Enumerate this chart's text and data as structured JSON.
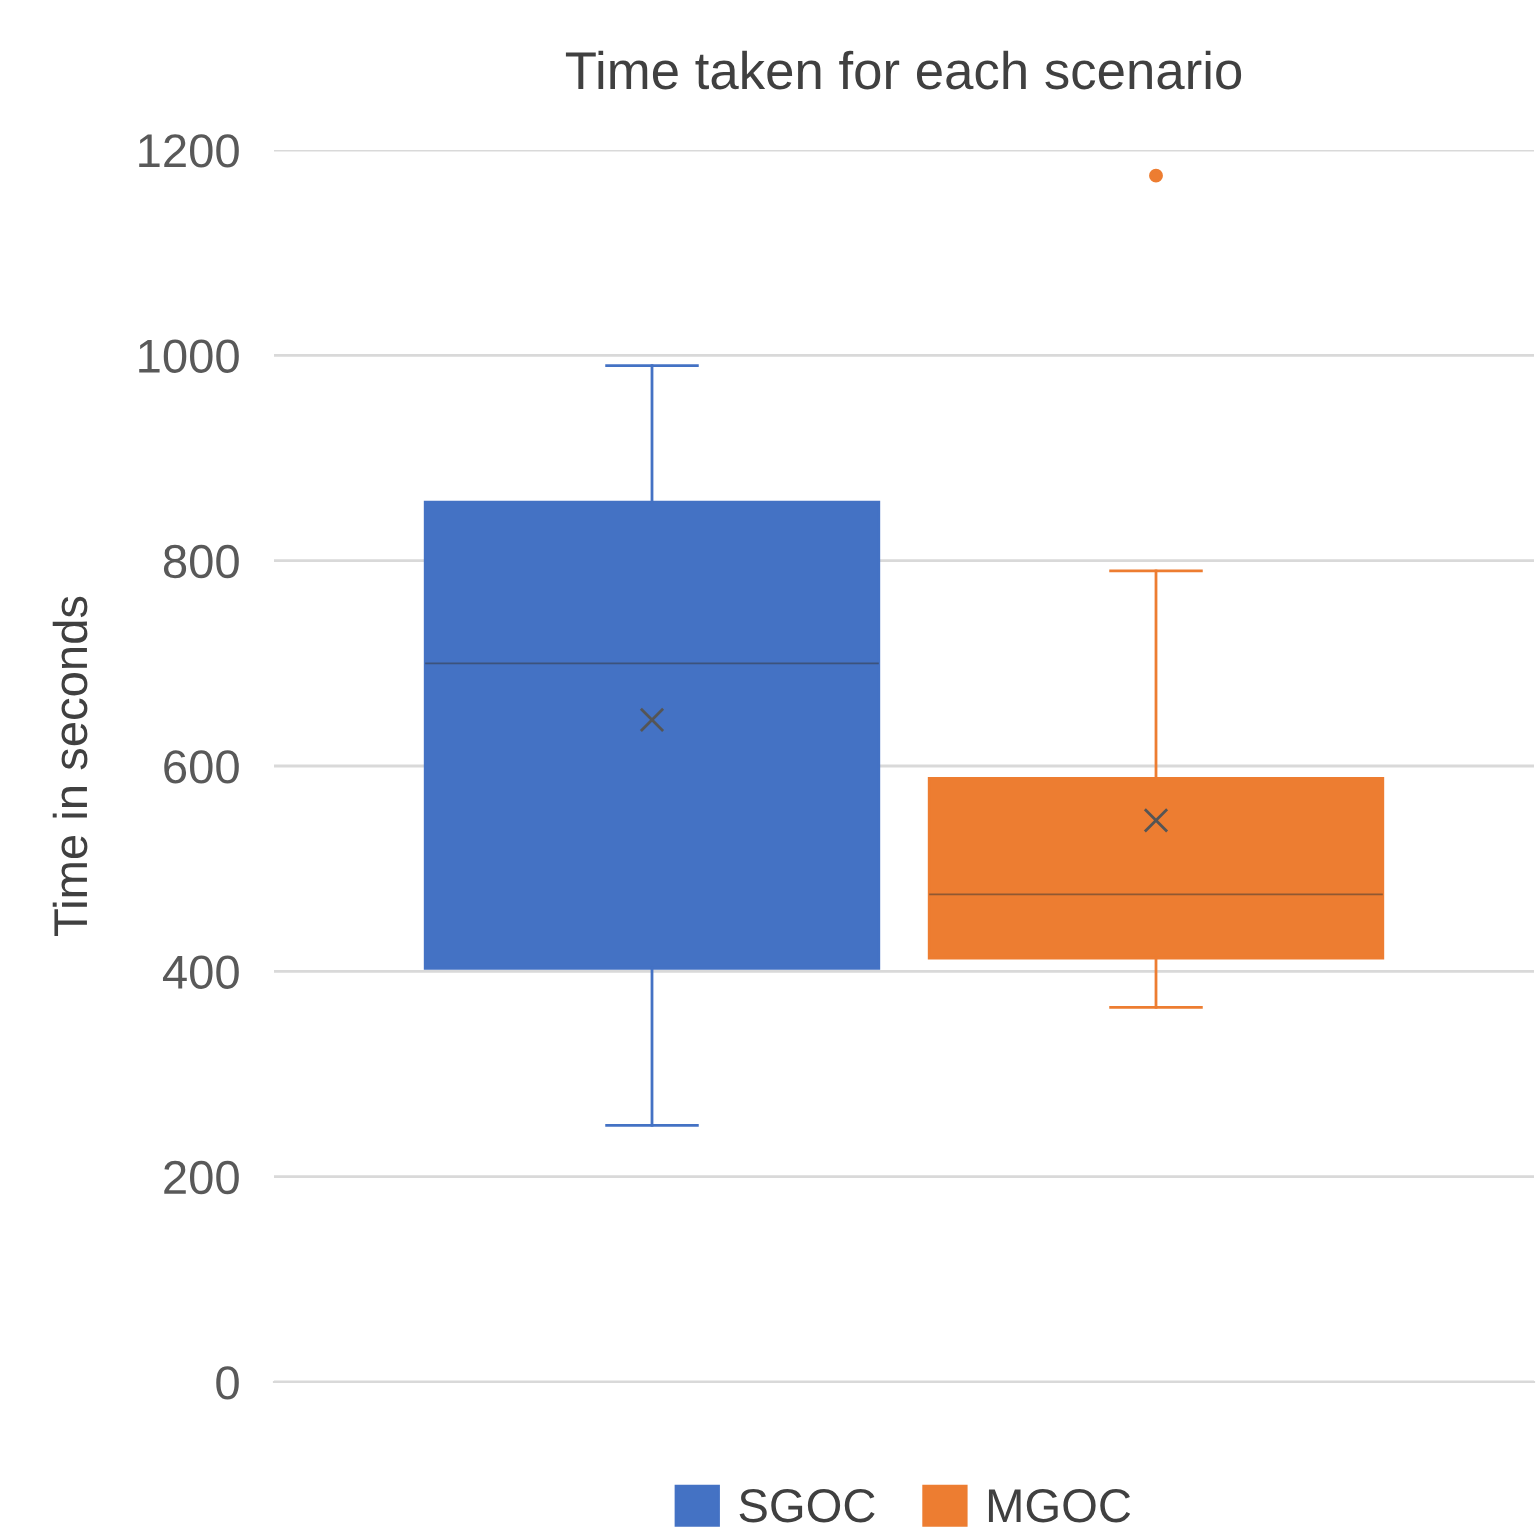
{
  "chart_data": {
    "type": "box",
    "title": "Time taken for each scenario",
    "ylabel": "Time in seconds",
    "categories": [
      null
    ],
    "series": [
      {
        "name": "SGOC",
        "color": "#4472c4",
        "boxes": [
          {
            "low": 250,
            "q1": 403,
            "median": 700,
            "q3": 857,
            "high": 990,
            "mean": 645
          }
        ]
      },
      {
        "name": "MGOC",
        "color": "#ed7d31",
        "boxes": [
          {
            "low": 365,
            "q1": 413,
            "median": 475,
            "q3": 588,
            "high": 790,
            "mean": 547,
            "outliers": [
              1175
            ]
          }
        ]
      }
    ],
    "ylim": [
      0,
      1200
    ],
    "yticks": [
      0,
      200,
      400,
      600,
      800,
      1000,
      1200
    ],
    "grid": "y",
    "legend": "bottom"
  }
}
